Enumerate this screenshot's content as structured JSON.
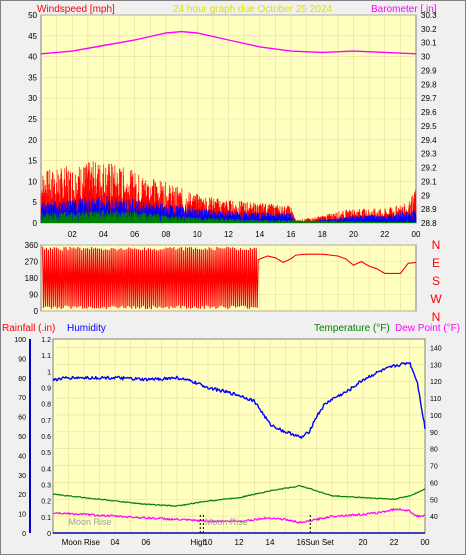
{
  "colors": {
    "panel_bg": "#ffffc0",
    "grid": "#e8dca0",
    "axis_text": "#000000",
    "wind_label": "#ff0000",
    "barometer": "#ff00ff",
    "title": "#e0e000",
    "humidity": "#0000ff",
    "temperature": "#008000",
    "dewpoint": "#ff00ff",
    "wind_direction": "#ff0000",
    "gust": "#ff0000",
    "avg_wind": "#0000ff",
    "wind_low": "#008000",
    "rainfall": "#0000cc",
    "rainfall_label": "#ff0000"
  },
  "header": {
    "title": "24 hour graph due   October 25 2024",
    "windspeed_label": "Windspeed [mph]",
    "barometer_label": "Barometer [.in]"
  },
  "time_axis": {
    "ticks": [
      "02",
      "04",
      "06",
      "08",
      "10",
      "12",
      "14",
      "16",
      "18",
      "20",
      "22",
      "00"
    ],
    "range_hours": [
      0,
      24
    ]
  },
  "bottom_axis": {
    "labels": [
      "Moon Rise",
      "High",
      "Sun Set"
    ],
    "ticks": [
      "02",
      "04",
      "06",
      "08",
      "10",
      "12",
      "14",
      "16",
      "18",
      "20",
      "22",
      "00"
    ],
    "overlay_labels": [
      "Moon Rise",
      "Moon Rise"
    ],
    "marker_hours": [
      9.7,
      16.6
    ]
  },
  "chart_data": [
    {
      "type": "line",
      "id": "wind-barometer",
      "y_left": {
        "label": "Windspeed [mph]",
        "ticks": [
          "0",
          "5",
          "10",
          "15",
          "20",
          "25",
          "30",
          "35",
          "40",
          "45",
          "50"
        ],
        "range": [
          0,
          50
        ]
      },
      "y_right": {
        "label": "Barometer [.in]",
        "ticks": [
          "28.8",
          "28.9",
          "29",
          "29.1",
          "29.2",
          "29.3",
          "29.4",
          "29.5",
          "29.6",
          "29.7",
          "29.8",
          "29.9",
          "30",
          "30.1",
          "30.2",
          "30.3"
        ],
        "range": [
          28.8,
          30.3
        ]
      },
      "x_range": [
        0,
        24
      ],
      "barometer": {
        "x": [
          0,
          2,
          4,
          6,
          8,
          9,
          10,
          12,
          14,
          16,
          18,
          20,
          22,
          24
        ],
        "y": [
          30.02,
          30.04,
          30.08,
          30.12,
          30.17,
          30.18,
          30.17,
          30.12,
          30.07,
          30.04,
          30.03,
          30.04,
          30.03,
          30.02
        ]
      },
      "gust_profile": {
        "x": [
          0,
          2,
          4,
          6,
          8,
          10,
          12,
          14,
          16,
          16.3,
          17.5,
          19,
          20,
          22,
          23.5,
          24
        ],
        "y": [
          9,
          10,
          11,
          9,
          7,
          5,
          4,
          3.5,
          3,
          0.5,
          1,
          2,
          2.5,
          2.5,
          3.5,
          6
        ]
      },
      "avg_profile": {
        "x": [
          0,
          2,
          4,
          6,
          8,
          10,
          12,
          14,
          16,
          16.3,
          17.5,
          19,
          20,
          22,
          24
        ],
        "y": [
          4,
          4.5,
          5,
          4.5,
          3.5,
          2.8,
          2.2,
          2,
          1.8,
          0.3,
          0.5,
          1,
          1.5,
          1.5,
          2.5
        ]
      },
      "low_profile": {
        "x": [
          0,
          2,
          4,
          6,
          8,
          10,
          12,
          14,
          16,
          24
        ],
        "y": [
          1.8,
          2,
          2.3,
          2,
          1.5,
          1,
          0.8,
          0.6,
          0.5,
          0.2
        ]
      }
    },
    {
      "type": "line",
      "id": "wind-direction",
      "y_left": {
        "ticks": [
          "0",
          "90",
          "180",
          "270",
          "360"
        ],
        "range": [
          0,
          360
        ]
      },
      "y_right": {
        "ticks": [
          "N",
          "W",
          "S",
          "E",
          "N"
        ]
      },
      "x_range": [
        0,
        24
      ],
      "oscillation": {
        "start_hour": 0.1,
        "end_hour": 13.9,
        "low": 10,
        "high": 350
      },
      "steady": {
        "x": [
          13.9,
          14.5,
          15,
          15.5,
          16,
          16.3,
          17,
          17.5,
          18,
          19,
          19.5,
          20,
          20.5,
          21,
          21.5,
          22,
          22.3,
          23,
          23.5,
          24
        ],
        "y": [
          280,
          300,
          290,
          265,
          285,
          305,
          310,
          310,
          310,
          300,
          285,
          250,
          270,
          245,
          230,
          205,
          205,
          205,
          260,
          265
        ]
      }
    },
    {
      "type": "line",
      "id": "humidity-temperature",
      "y_left_rainfall": {
        "label": "Rainfall (.in)",
        "ticks": [
          "0",
          "0.1",
          "0.2",
          "0.3",
          "0.4",
          "0.5",
          "0.6",
          "0.7",
          "0.8",
          "0.9",
          "1",
          "1.1",
          "1.2"
        ],
        "range": [
          0,
          1.2
        ]
      },
      "y_left_humidity": {
        "label": "Humidity",
        "ticks": [
          "0",
          "10",
          "20",
          "30",
          "40",
          "50",
          "60",
          "70",
          "80",
          "90",
          "100"
        ],
        "range": [
          0,
          100
        ]
      },
      "y_right": {
        "label": "Temperature (°F)",
        "label2": "Dew Point (°F)",
        "ticks": [
          "40",
          "50",
          "60",
          "70",
          "80",
          "90",
          "100",
          "110",
          "120",
          "130",
          "140"
        ],
        "range": [
          30,
          145
        ]
      },
      "x_range": [
        0,
        24
      ],
      "humidity": {
        "x": [
          0,
          1,
          2,
          4,
          6,
          8,
          9,
          10,
          12,
          13,
          14,
          14.5,
          15,
          15.5,
          16,
          16.5,
          17,
          17.5,
          18,
          19,
          20,
          21,
          22,
          23,
          23.5,
          24
        ],
        "y": [
          79,
          80,
          80,
          80,
          79,
          80,
          78,
          75,
          71,
          68,
          56,
          54,
          52,
          51,
          49,
          52,
          60,
          66,
          69,
          73,
          79,
          83,
          86,
          88,
          78,
          54
        ]
      },
      "temperature": {
        "x": [
          0,
          2,
          4,
          6,
          8,
          10,
          12,
          14,
          16,
          17,
          18,
          20,
          22,
          23,
          24
        ],
        "y": [
          53,
          51,
          49,
          47,
          46,
          49,
          51,
          55,
          58,
          55,
          52,
          51,
          50,
          52,
          56
        ]
      },
      "dewpoint": {
        "x": [
          0,
          2,
          4,
          6,
          8,
          10,
          12,
          14,
          15,
          16,
          17,
          18,
          20,
          21,
          22,
          22.5,
          23,
          23.5,
          24
        ],
        "y": [
          42,
          41,
          40,
          39,
          38,
          37,
          37,
          39,
          38,
          36,
          38,
          40,
          41,
          42,
          44,
          44,
          43,
          40,
          40
        ]
      },
      "rainfall": {
        "x": [
          0,
          24
        ],
        "y": [
          0,
          0
        ]
      }
    }
  ]
}
